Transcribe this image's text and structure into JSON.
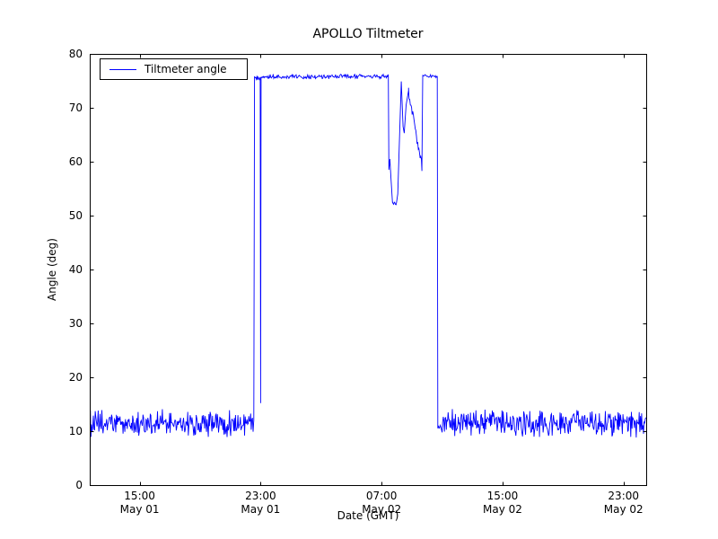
{
  "chart_data": {
    "type": "line",
    "title": "APOLLO Tiltmeter",
    "xlabel": "Date (GMT)",
    "ylabel": "Angle (deg)",
    "grid": false,
    "legend": {
      "position": "upper left",
      "entries": [
        {
          "label": "Tiltmeter angle",
          "color": "#0000ff"
        }
      ]
    },
    "x_unit": "hours since May 01 00:00 GMT",
    "xlim": [
      11.7,
      48.5
    ],
    "ylim": [
      0,
      80
    ],
    "yticks": [
      0,
      10,
      20,
      30,
      40,
      50,
      60,
      70,
      80
    ],
    "xticks": [
      {
        "hour": 15,
        "time": "15:00",
        "date": "May 01"
      },
      {
        "hour": 23,
        "time": "23:00",
        "date": "May 01"
      },
      {
        "hour": 31,
        "time": "07:00",
        "date": "May 02"
      },
      {
        "hour": 39,
        "time": "15:00",
        "date": "May 02"
      },
      {
        "hour": 47,
        "time": "23:00",
        "date": "May 02"
      }
    ],
    "series": [
      {
        "name": "Tiltmeter angle",
        "color": "#0000ff",
        "sample_step_hours": 0.04,
        "segments": [
          {
            "type": "noise",
            "x0": 11.7,
            "x1": 22.55,
            "base": 11.35,
            "amp": 1.3
          },
          {
            "type": "line",
            "points": [
              [
                22.55,
                12.0
              ],
              [
                22.6,
                75.6
              ]
            ]
          },
          {
            "type": "noise",
            "x0": 22.6,
            "x1": 22.97,
            "base": 75.7,
            "amp": 0.25
          },
          {
            "type": "line",
            "points": [
              [
                22.97,
                75.7
              ],
              [
                23.0,
                15.2
              ],
              [
                23.03,
                75.7
              ]
            ]
          },
          {
            "type": "noise",
            "x0": 23.03,
            "x1": 31.45,
            "base": 75.8,
            "amp": 0.22
          },
          {
            "type": "line",
            "points": [
              [
                31.45,
                75.8
              ],
              [
                31.48,
                58.5
              ],
              [
                31.55,
                60.5
              ],
              [
                31.62,
                57.0
              ],
              [
                31.72,
                52.4
              ]
            ]
          },
          {
            "type": "noise",
            "x0": 31.72,
            "x1": 31.98,
            "base": 52.3,
            "amp": 0.25
          },
          {
            "type": "line",
            "points": [
              [
                31.98,
                52.3
              ],
              [
                32.07,
                54.0
              ],
              [
                32.3,
                74.9
              ],
              [
                32.42,
                66.5
              ],
              [
                32.5,
                65.3
              ],
              [
                32.62,
                70.5
              ],
              [
                32.78,
                73.2
              ]
            ]
          },
          {
            "type": "trend",
            "x0": 32.78,
            "x1": 33.67,
            "v0": 73.2,
            "v1": 59.0,
            "amp": 0.55
          },
          {
            "type": "line",
            "points": [
              [
                33.67,
                59.0
              ],
              [
                33.72,
                75.9
              ]
            ]
          },
          {
            "type": "noise",
            "x0": 33.72,
            "x1": 34.68,
            "base": 75.9,
            "amp": 0.18
          },
          {
            "type": "line",
            "points": [
              [
                34.68,
                75.9
              ],
              [
                34.72,
                12.0
              ]
            ]
          },
          {
            "type": "noise",
            "x0": 34.72,
            "x1": 48.5,
            "base": 11.45,
            "amp": 1.3
          }
        ]
      }
    ]
  }
}
